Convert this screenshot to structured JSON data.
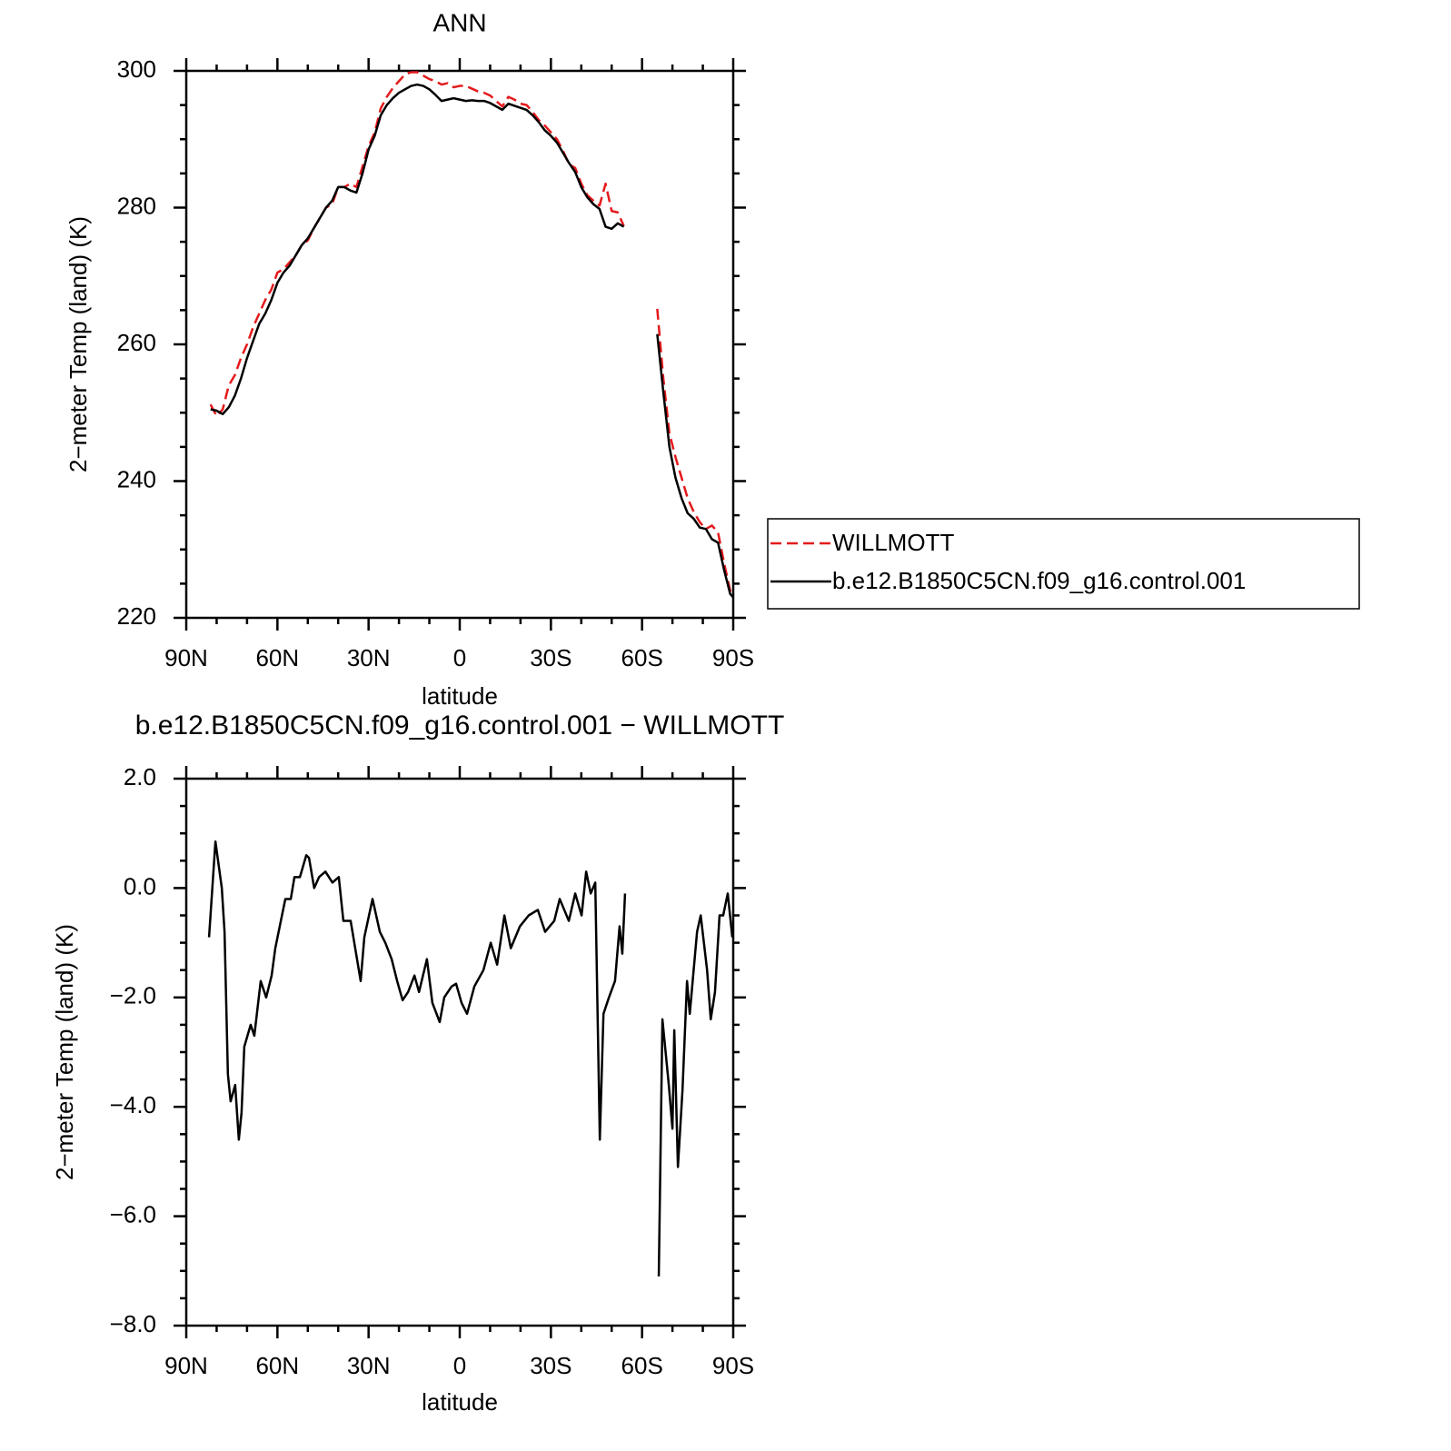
{
  "chart_data": [
    {
      "type": "line",
      "title": "ANN",
      "x_label": "latitude",
      "y_label": "2−meter Temp (land) (K)",
      "x": [
        82,
        80,
        78,
        76,
        74,
        72,
        70,
        68,
        66,
        64,
        62,
        60,
        58,
        56,
        54,
        52,
        50,
        48,
        46,
        44,
        42,
        40,
        38,
        36,
        34,
        32,
        30,
        28,
        26,
        24,
        22,
        20,
        18,
        16,
        14,
        12,
        10,
        8,
        6,
        4,
        2,
        0,
        -2,
        -4,
        -6,
        -8,
        -10,
        -12,
        -14,
        -16,
        -18,
        -20,
        -22,
        -24,
        -26,
        -28,
        -30,
        -32,
        -34,
        -36,
        -38,
        -40,
        -42,
        -44,
        -46,
        -48,
        -50,
        -52,
        -54,
        -60,
        -65,
        -67,
        -69,
        -71,
        -73,
        -75,
        -77,
        -79,
        -81,
        -83,
        -85,
        -87,
        -89,
        -90
      ],
      "series": [
        {
          "name": "WILLMOTT",
          "color": "#e41a1c",
          "dashed": true,
          "values": [
            251.2,
            249.5,
            250.5,
            254,
            255.5,
            258,
            260,
            262.5,
            264.5,
            266.5,
            268,
            270.5,
            271,
            272,
            273,
            274.5,
            275.2,
            277,
            278.5,
            280,
            280.5,
            283,
            283,
            283.5,
            283,
            286,
            289,
            291,
            294.5,
            296.2,
            297.5,
            298.5,
            299.5,
            299.8,
            299.8,
            299.3,
            298.8,
            298.5,
            298,
            298.2,
            297.6,
            297.8,
            297.8,
            297.4,
            297,
            296.8,
            296.4,
            295.6,
            294.8,
            296.2,
            295.8,
            295.2,
            295,
            294,
            292.8,
            292,
            291,
            290,
            288.3,
            286.3,
            285.8,
            283.5,
            281.8,
            281,
            280.3,
            283.5,
            279.5,
            279.3,
            277.3,
            null,
            265.2,
            255,
            247,
            243.5,
            240.5,
            237.5,
            235.5,
            234,
            233,
            233.5,
            232.5,
            228,
            224,
            223.3
          ]
        },
        {
          "name": "b.e12.B1850C5CN.f09_g16.control.001",
          "color": "#000000",
          "dashed": false,
          "values": [
            250.5,
            250.3,
            249.8,
            250.8,
            252.5,
            255,
            258,
            260.5,
            263,
            264.5,
            266.5,
            269,
            270.5,
            271.5,
            273,
            274.5,
            275.5,
            277,
            278.5,
            280,
            281,
            283,
            283,
            282.5,
            282.2,
            285,
            288.5,
            290.5,
            293.5,
            295,
            296,
            296.8,
            297.3,
            297.8,
            298,
            297.8,
            297.3,
            296.5,
            295.6,
            295.8,
            296,
            295.8,
            295.6,
            295.7,
            295.6,
            295.6,
            295.3,
            294.8,
            294.3,
            295.2,
            294.9,
            294.6,
            294.3,
            293.5,
            292.5,
            291.3,
            290.5,
            289.5,
            288,
            286.5,
            285.2,
            283,
            281.5,
            280.5,
            279.8,
            277.2,
            276.9,
            277.7,
            277.2,
            null,
            261.5,
            253,
            245,
            240.5,
            237.5,
            235.3,
            234.5,
            233.2,
            233,
            231.5,
            231,
            227,
            223.5,
            223
          ]
        }
      ],
      "xlim": [
        90,
        -90
      ],
      "xticks": [
        {
          "value": 90,
          "label": "90N"
        },
        {
          "value": 60,
          "label": "60N"
        },
        {
          "value": 30,
          "label": "30N"
        },
        0,
        {
          "value": -30,
          "label": "30S"
        },
        {
          "value": -60,
          "label": "60S"
        },
        {
          "value": -90,
          "label": "90S"
        }
      ],
      "ylim": [
        220,
        300
      ],
      "yticks": [
        220,
        240,
        260,
        280,
        300
      ],
      "legend": "right"
    },
    {
      "type": "line",
      "title": "b.e12.B1850C5CN.f09_g16.control.001 − WILLMOTT",
      "x_label": "latitude",
      "y_label": "2−meter Temp (land) (K)",
      "x": [
        82.5,
        80.4,
        78.3,
        77.4,
        76.3,
        75.4,
        73.9,
        72.7,
        71.8,
        70.9,
        68.8,
        67.6,
        65.5,
        63.7,
        61.9,
        60.7,
        57.4,
        55.6,
        54.4,
        52.6,
        50.5,
        49.6,
        47.9,
        46.3,
        44.2,
        41.9,
        39.8,
        38.3,
        35.9,
        32.6,
        31.4,
        28.7,
        26.3,
        24.5,
        22.4,
        20.6,
        18.8,
        17,
        14.9,
        13.4,
        10.8,
        9,
        6.6,
        5.1,
        2.7,
        1.2,
        -0.6,
        -2.4,
        -4.8,
        -7.8,
        -10.2,
        -12.3,
        -14.7,
        -16.8,
        -19.8,
        -22.7,
        -25.7,
        -28.1,
        -31.1,
        -32.9,
        -35.9,
        -38,
        -40.1,
        -41.6,
        -43.1,
        -44.6,
        -46.1,
        -47.3,
        -49.1,
        -51.1,
        -52.6,
        -53.5,
        -54.4,
        -60,
        -65.5,
        -66.7,
        -68.8,
        -70,
        -70.6,
        -71.8,
        -73.3,
        -74.8,
        -75.7,
        -78.1,
        -79.3,
        -81.4,
        -82.6,
        -84,
        -85.5,
        -86.7,
        -88.2,
        -89.7
      ],
      "series": [
        {
          "color": "#000000",
          "dashed": false,
          "values": [
            -0.9,
            0.85,
            0.0,
            -0.8,
            -3.4,
            -3.9,
            -3.6,
            -4.6,
            -4.1,
            -2.9,
            -2.5,
            -2.7,
            -1.7,
            -2.0,
            -1.6,
            -1.1,
            -0.2,
            -0.2,
            0.2,
            0.2,
            0.6,
            0.55,
            0.0,
            0.2,
            0.3,
            0.1,
            0.2,
            -0.6,
            -0.6,
            -1.7,
            -0.9,
            -0.2,
            -0.8,
            -1.0,
            -1.3,
            -1.7,
            -2.05,
            -1.9,
            -1.6,
            -1.9,
            -1.3,
            -2.1,
            -2.45,
            -2.0,
            -1.8,
            -1.75,
            -2.1,
            -2.3,
            -1.8,
            -1.5,
            -1.0,
            -1.4,
            -0.5,
            -1.1,
            -0.7,
            -0.5,
            -0.4,
            -0.8,
            -0.6,
            -0.2,
            -0.6,
            -0.1,
            -0.5,
            0.3,
            -0.1,
            0.1,
            -4.6,
            -2.3,
            -2.0,
            -1.7,
            -0.7,
            -1.2,
            -0.1,
            null,
            -7.1,
            -2.4,
            -3.6,
            -4.4,
            -2.6,
            -5.1,
            -3.7,
            -1.7,
            -2.3,
            -0.8,
            -0.5,
            -1.5,
            -2.4,
            -1.9,
            -0.5,
            -0.5,
            -0.1,
            -0.9
          ]
        }
      ],
      "xlim": [
        90,
        -90
      ],
      "xticks": [
        {
          "value": 90,
          "label": "90N"
        },
        {
          "value": 60,
          "label": "60N"
        },
        {
          "value": 30,
          "label": "30N"
        },
        0,
        {
          "value": -30,
          "label": "30S"
        },
        {
          "value": -60,
          "label": "60S"
        },
        {
          "value": -90,
          "label": "90S"
        }
      ],
      "ylim": [
        -8,
        2
      ],
      "yticks": [
        {
          "value": -8,
          "label": "−8.0"
        },
        {
          "value": -6,
          "label": "−6.0"
        },
        {
          "value": -4,
          "label": "−4.0"
        },
        {
          "value": -2,
          "label": "−2.0"
        },
        {
          "value": 0,
          "label": "0.0"
        },
        {
          "value": 2,
          "label": "2.0"
        }
      ]
    }
  ]
}
